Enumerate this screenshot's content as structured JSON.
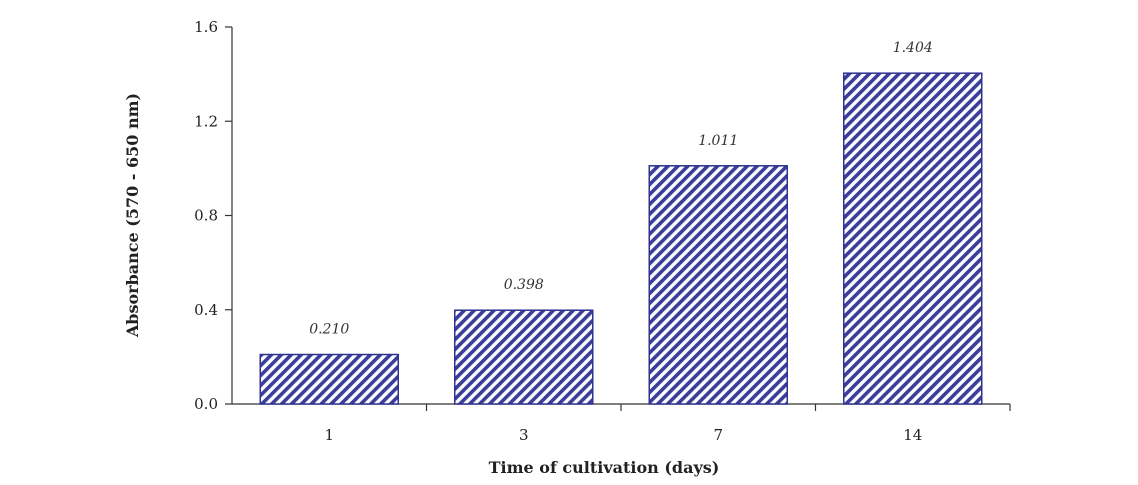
{
  "chart_data": {
    "type": "bar",
    "categories": [
      "1",
      "3",
      "7",
      "14"
    ],
    "values": [
      0.21,
      0.398,
      1.011,
      1.404
    ],
    "data_labels": [
      "0.210",
      "0.398",
      "1.011",
      "1.404"
    ],
    "title": "",
    "xlabel": "Time of cultivation (days)",
    "ylabel": "Absorbance (570 - 650 nm)",
    "ylim": [
      0,
      1.6
    ],
    "yticks": [
      0,
      0.4,
      0.8,
      1.2,
      1.6
    ],
    "ytick_labels": [
      "0.0",
      "0.4",
      "0.8",
      "1.2",
      "1.6"
    ],
    "grid": false,
    "legend": "none",
    "bar_fill": "#3a3d9a",
    "bar_stroke": "#2f3290",
    "bar_pattern": "diagonal-hatch",
    "axis_color": "#333333"
  }
}
